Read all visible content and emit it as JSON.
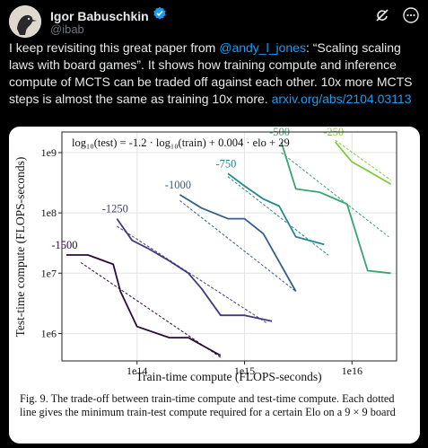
{
  "author": {
    "name": "Igor Babuschkin",
    "handle": "@ibab"
  },
  "icons": {
    "verified": "verified-badge-icon",
    "grok": "grok-icon",
    "more": "more-options-icon"
  },
  "tweet": {
    "part1": "I keep revisiting this great paper from ",
    "mention": "@andy_l_jones",
    "part2": ": “Scaling scaling laws with board games”. It shows how training compute and inference compute of MCTS can be traded off against each other. 10x more MCTS steps is almost the same as training 10x more. ",
    "link": "arxiv.org/abs/2104.03113"
  },
  "figure": {
    "caption": "Fig. 9.  The trade-off between train-time compute and test-time compute. Each dotted line gives the minimum train-test compute required for a certain Elo on a 9 × 9 board"
  },
  "chart_data": {
    "type": "line",
    "annotation": "log₁₀(test) = -1.2 · log₁₀(train) + 0.004 · elo + 29",
    "xlabel": "Train-time compute (FLOPS-seconds)",
    "ylabel": "Test-time compute (FLOPS-seconds)",
    "x_scale": "log",
    "y_scale": "log",
    "xlim": [
      20000000000000.0,
      2.6e+16
    ],
    "ylim": [
      350000.0,
      2200000000.0
    ],
    "x_ticks": [
      {
        "v": 100000000000000.0,
        "label": "1e14"
      },
      {
        "v": 1000000000000000.0,
        "label": "1e15"
      },
      {
        "v": 1e+16,
        "label": "1e16"
      }
    ],
    "y_ticks": [
      {
        "v": 1000000.0,
        "label": "1e6"
      },
      {
        "v": 10000000.0,
        "label": "1e7"
      },
      {
        "v": 100000000.0,
        "label": "1e8"
      },
      {
        "v": 1000000000.0,
        "label": "1e9"
      }
    ],
    "grid": true,
    "series": [
      {
        "name": "-1500",
        "color": "#2b0a3d",
        "x": [
          22000000000000.0,
          35000000000000.0,
          60000000000000.0,
          70000000000000.0,
          100000000000000.0,
          200000000000000.0,
          300000000000000.0,
          600000000000000.0
        ],
        "y": [
          20000000.0,
          20000000.0,
          14000000.0,
          5000000.0,
          1300000.0,
          850000.0,
          850000.0,
          430000.0
        ],
        "frontier": [
          [
            30000000000000.0,
            15000000.0
          ],
          [
            600000000000000.0,
            400000.0
          ]
        ]
      },
      {
        "name": "-1250",
        "color": "#3f3b7e",
        "x": [
          65000000000000.0,
          90000000000000.0,
          130000000000000.0,
          200000000000000.0,
          300000000000000.0,
          400000000000000.0,
          600000000000000.0,
          1000000000000000.0,
          1800000000000000.0
        ],
        "y": [
          80000000.0,
          35000000.0,
          25000000.0,
          16000000.0,
          10000000.0,
          5500000.0,
          2000000.0,
          2000000.0,
          1600000.0
        ],
        "frontier": [
          [
            65000000000000.0,
            60000000.0
          ],
          [
            1600000000000000.0,
            1500000.0
          ]
        ]
      },
      {
        "name": "-1000",
        "color": "#355f8d",
        "x": [
          250000000000000.0,
          400000000000000.0,
          700000000000000.0,
          1000000000000000.0,
          1500000000000000.0,
          3000000000000000.0
        ],
        "y": [
          200000000.0,
          120000000.0,
          80000000.0,
          80000000.0,
          45000000.0,
          5000000.0
        ],
        "frontier": [
          [
            250000000000000.0,
            160000000.0
          ],
          [
            3000000000000000.0,
            5000000.0
          ]
        ]
      },
      {
        "name": "-750",
        "color": "#23878b",
        "x": [
          700000000000000.0,
          1000000000000000.0,
          1500000000000000.0,
          2100000000000000.0,
          3000000000000000.0,
          5500000000000000.0
        ],
        "y": [
          450000000.0,
          280000000.0,
          170000000.0,
          130000000.0,
          40000000.0,
          30000000.0
        ],
        "frontier": [
          [
            700000000000000.0,
            400000000.0
          ],
          [
            6000000000000000.0,
            20000000.0
          ]
        ]
      },
      {
        "name": "-500",
        "color": "#39a46f",
        "x": [
          2200000000000000.0,
          3000000000000000.0,
          5000000000000000.0,
          9000000000000000.0,
          1.4e+16,
          2.3e+16
        ],
        "y": [
          1500000000.0,
          250000000.0,
          220000000.0,
          140000000.0,
          11000000.0,
          10000000.0
        ],
        "frontier": [
          [
            2200000000000000.0,
            1000000000.0
          ],
          [
            2.2e+16,
            40000000.0
          ]
        ]
      },
      {
        "name": "-250",
        "color": "#84ca3f",
        "x": [
          7000000000000000.0,
          1e+16,
          1.4e+16,
          2.3e+16
        ],
        "y": [
          1500000000.0,
          700000000.0,
          500000000.0,
          300000000.0
        ],
        "frontier": [
          [
            7000000000000000.0,
            1600000000.0
          ],
          [
            2.3e+16,
            350000000.0
          ]
        ]
      }
    ]
  }
}
